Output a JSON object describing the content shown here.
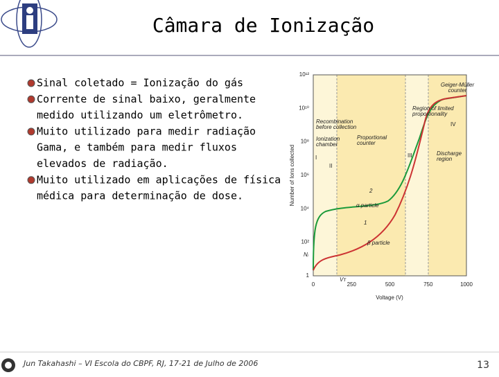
{
  "header": {
    "title": "Câmara de Ionização"
  },
  "bullets": [
    [
      "Sinal coletado = Ionização do gás"
    ],
    [
      "Corrente de sinal baixo, geralmente",
      "medido utilizando um eletrômetro."
    ],
    [
      "Muito utilizado para medir radiação",
      "Gama, e também para medir fluxos",
      "elevados de radiação."
    ],
    [
      "Muito utilizado em aplicações de física",
      "médica para determinação de dose."
    ]
  ],
  "figure": {
    "y_label": "Number of Ions collected",
    "x_label": "Voltage (V)",
    "y_ticks": [
      "10¹²",
      "10¹⁰",
      "10⁸",
      "10⁶",
      "10⁴",
      "10²",
      "1"
    ],
    "x_ticks": [
      "0",
      "250",
      "500",
      "750",
      "1000"
    ],
    "regions": [
      "I",
      "II",
      "III",
      "IV"
    ],
    "annotations": [
      [
        "Geiger-Müller",
        "counter"
      ],
      [
        "Region of limited",
        "proportionality"
      ],
      [
        "Recombination",
        "before collection"
      ],
      [
        "Ionization",
        "chamber"
      ],
      [
        "Proportional",
        "counter"
      ],
      [
        "Discharge",
        "region"
      ]
    ],
    "curve_labels": [
      "α particle",
      "β particle",
      "1",
      "2",
      "Nᵢ",
      "Vᴛ"
    ]
  },
  "footer": {
    "text": "Jun Takahashi – VI Escola do CBPF, RJ, 17-21 de Julho de 2006",
    "page": "13"
  }
}
